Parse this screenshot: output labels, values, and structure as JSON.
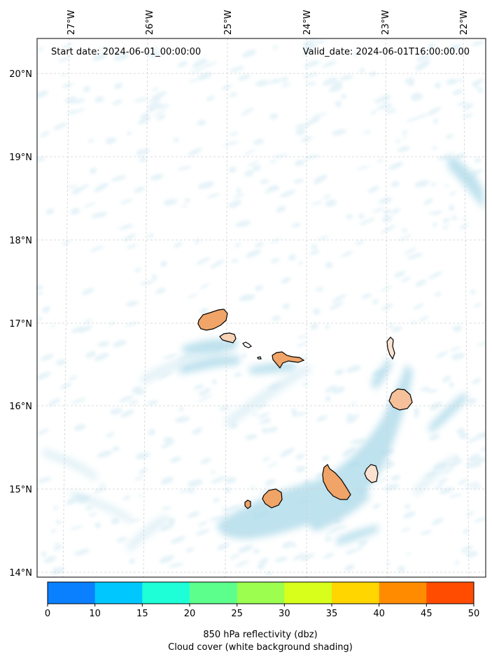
{
  "map": {
    "start_date_text": "Start date: 2024-06-01_00:00:00",
    "valid_date_text": "Valid_date: 2024-06-01T16:00:00.00",
    "lon_labels": [
      "27°W",
      "26°W",
      "25°W",
      "24°W",
      "23°W",
      "22°W"
    ],
    "lat_labels": [
      "20°N",
      "19°N",
      "18°N",
      "17°N",
      "16°N",
      "15°N",
      "14°N"
    ],
    "gridlines": true,
    "background_shading": "cloud cover (light blue-white)",
    "coastline_color": "#000000",
    "islands": [
      {
        "name_icon": "island-santo-antao-icon",
        "fill": "#f0a468"
      },
      {
        "name_icon": "island-sao-vicente-icon",
        "fill": "#f7d2b5"
      },
      {
        "name_icon": "island-santa-luzia-icon",
        "fill": "#ffffff"
      },
      {
        "name_icon": "island-branco-raso-icon",
        "fill": "#ffffff"
      },
      {
        "name_icon": "island-sao-nicolau-icon",
        "fill": "#f0a468"
      },
      {
        "name_icon": "island-sal-icon",
        "fill": "#fbe3d2"
      },
      {
        "name_icon": "island-boa-vista-icon",
        "fill": "#f5c09a"
      },
      {
        "name_icon": "island-maio-icon",
        "fill": "#fbe1cf"
      },
      {
        "name_icon": "island-santiago-icon",
        "fill": "#f0a468"
      },
      {
        "name_icon": "island-fogo-icon",
        "fill": "#f0a468"
      },
      {
        "name_icon": "island-brava-icon",
        "fill": "#f0a468"
      }
    ]
  },
  "colorbar": {
    "ticks": [
      "0",
      "10",
      "15",
      "20",
      "25",
      "30",
      "35",
      "40",
      "45",
      "50"
    ],
    "colors": [
      "#0a80ff",
      "#00c8ff",
      "#1effd8",
      "#5cff8c",
      "#9cff50",
      "#d8ff1c",
      "#ffd600",
      "#ff8c00",
      "#ff4c00"
    ],
    "label_line1": "850 hPa reflectivity (dbz)",
    "label_line2": "Cloud cover (white background shading)"
  }
}
